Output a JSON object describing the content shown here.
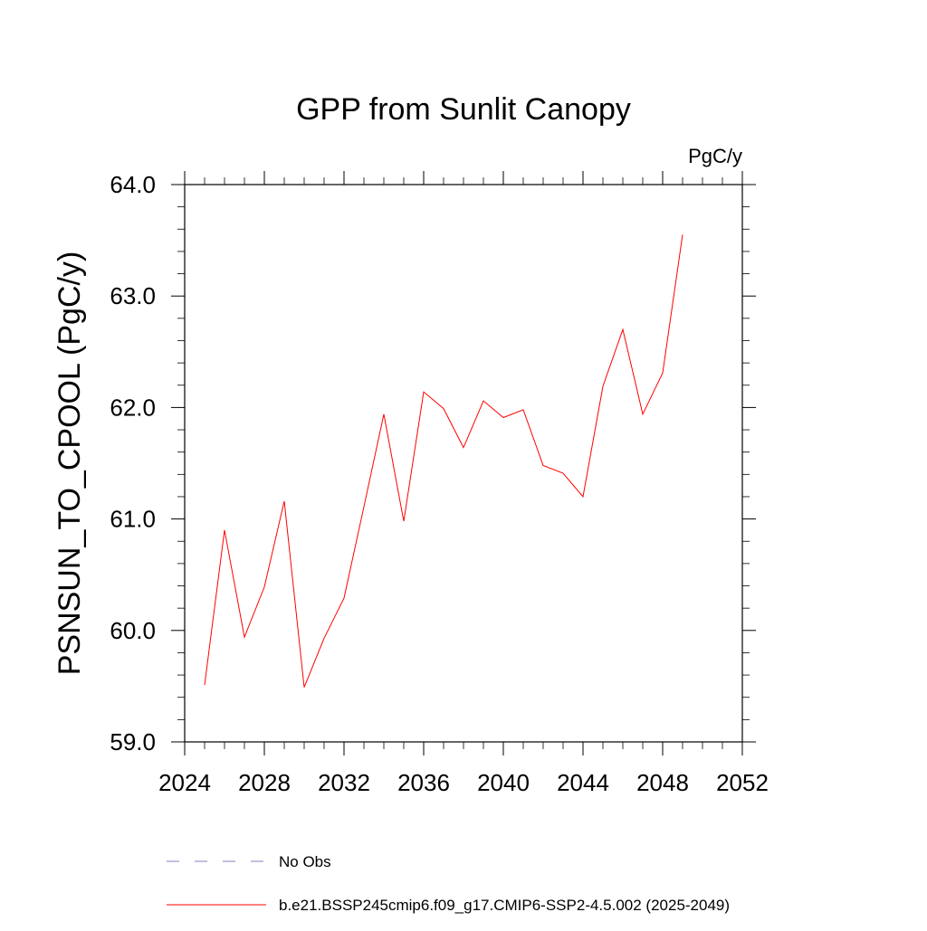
{
  "chart_data": {
    "type": "line",
    "title": "GPP from Sunlit Canopy",
    "units_label": "PgC/y",
    "ylabel": "PSNSUN_TO_CPOOL  (PgC/y)",
    "xlabel": "",
    "xlim": [
      2024,
      2052
    ],
    "ylim": [
      59.0,
      64.0
    ],
    "xticks": [
      2024,
      2028,
      2032,
      2036,
      2040,
      2044,
      2048,
      2052
    ],
    "xtick_labels": [
      "2024",
      "2028",
      "2032",
      "2036",
      "2040",
      "2044",
      "2048",
      "2052"
    ],
    "yticks": [
      59.0,
      60.0,
      61.0,
      62.0,
      63.0,
      64.0
    ],
    "ytick_labels": [
      "59.0",
      "60.0",
      "61.0",
      "62.0",
      "63.0",
      "64.0"
    ],
    "grid": false,
    "legend_position": "bottom",
    "series": [
      {
        "name": "b.e21.BSSP245cmip6.f09_g17.CMIP6-SSP2-4.5.002 (2025-2049)",
        "color": "#ff0000",
        "dash": "solid",
        "x": [
          2025,
          2026,
          2027,
          2028,
          2029,
          2030,
          2031,
          2032,
          2033,
          2034,
          2035,
          2036,
          2037,
          2038,
          2039,
          2040,
          2041,
          2042,
          2043,
          2044,
          2045,
          2046,
          2047,
          2048,
          2049
        ],
        "values": [
          59.51,
          60.9,
          59.94,
          60.39,
          61.16,
          59.49,
          59.93,
          60.29,
          61.11,
          61.94,
          60.98,
          62.14,
          61.99,
          61.64,
          62.06,
          61.91,
          61.98,
          61.48,
          61.41,
          61.2,
          62.19,
          62.7,
          61.94,
          62.31,
          63.55
        ]
      }
    ],
    "legend": [
      {
        "label": "No Obs",
        "color": "#7f7fbf",
        "dash": "dashed"
      },
      {
        "label": "b.e21.BSSP245cmip6.f09_g17.CMIP6-SSP2-4.5.002 (2025-2049)",
        "color": "#ff0000",
        "dash": "solid"
      }
    ]
  }
}
